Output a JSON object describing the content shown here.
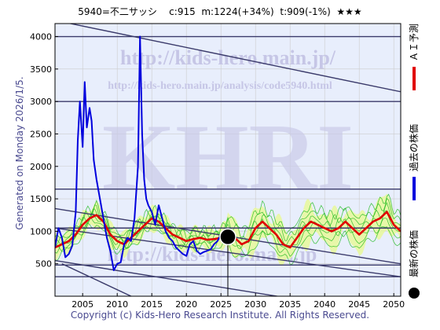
{
  "header": {
    "code": "5940=不二サッシ",
    "c": "c:915",
    "m": "m:1224(+34%)",
    "t": "t:909(-1%)",
    "stars": "★★★"
  },
  "side_label": "Generated on Monday 2026/1/5.",
  "footer": "Copyright (c) Kids-Hero Research Institute. All Rights Reserved.",
  "watermark": {
    "url1": "http://kids-hero.main.jp/",
    "url2": "http://kids-hero.main.jp/analysis/code5940.html",
    "logo": "KHRI",
    "url3": "http://kids-hero.main.jp"
  },
  "legend": [
    {
      "label": "ＡＩ予測",
      "color": "#e00000",
      "kind": "line"
    },
    {
      "label": "過去の株価",
      "color": "#0000dd",
      "kind": "line"
    },
    {
      "label": "最新の株価",
      "color": "#000000",
      "kind": "dot"
    }
  ],
  "colors": {
    "actual": "#0000dd",
    "forecast": "#e00000",
    "band": "#22bb22",
    "band_fill": "#e8f7a0",
    "trend": "#3a3a6a",
    "grid": "#cccccc",
    "bg": "#e8eefc"
  },
  "chart_data": {
    "type": "line",
    "xlim": [
      2001,
      2051
    ],
    "ylim": [
      0,
      4200
    ],
    "xticks": [
      2005,
      2010,
      2015,
      2020,
      2025,
      2030,
      2035,
      2040,
      2045,
      2050
    ],
    "yticks": [
      500,
      1000,
      1500,
      2000,
      2500,
      3000,
      3500,
      4000
    ],
    "grid": true,
    "legend_position": "right",
    "series": [
      {
        "name": "過去の株価",
        "x": [
          2001,
          2001.5,
          2002,
          2002.5,
          2003,
          2003.5,
          2004,
          2004.3,
          2004.6,
          2005,
          2005.3,
          2005.6,
          2006,
          2006.3,
          2006.6,
          2007,
          2007.5,
          2008,
          2008.5,
          2009,
          2009.5,
          2010,
          2010.5,
          2011,
          2011.5,
          2012,
          2012.5,
          2013,
          2013.3,
          2013.6,
          2013.9,
          2014.2,
          2014.5,
          2015,
          2015.5,
          2016,
          2016.5,
          2017,
          2017.5,
          2018,
          2018.5,
          2019,
          2019.5,
          2020,
          2020.5,
          2021,
          2021.5,
          2022,
          2022.5,
          2023,
          2023.5,
          2024,
          2024.5,
          2025,
          2025.3
        ],
        "y": [
          750,
          1050,
          900,
          600,
          650,
          780,
          1300,
          2400,
          3000,
          2300,
          3300,
          2600,
          2900,
          2700,
          2100,
          1800,
          1500,
          1200,
          900,
          700,
          400,
          500,
          520,
          800,
          900,
          850,
          1200,
          2000,
          4000,
          2500,
          1800,
          1500,
          1400,
          1300,
          1100,
          1400,
          1200,
          1000,
          900,
          850,
          750,
          700,
          650,
          620,
          800,
          850,
          700,
          650,
          680,
          700,
          720,
          800,
          850,
          950,
          950
        ]
      },
      {
        "name": "ＡＩ予測",
        "x": [
          2001,
          2002,
          2003,
          2004,
          2005,
          2006,
          2007,
          2008,
          2009,
          2010,
          2011,
          2012,
          2013,
          2014,
          2015,
          2016,
          2017,
          2018,
          2019,
          2020,
          2021,
          2022,
          2023,
          2024,
          2025,
          2026,
          2027,
          2028,
          2029,
          2030,
          2031,
          2032,
          2033,
          2034,
          2035,
          2036,
          2037,
          2038,
          2039,
          2040,
          2041,
          2042,
          2043,
          2044,
          2045,
          2046,
          2047,
          2048,
          2049,
          2050,
          2051
        ],
        "y": [
          750,
          800,
          850,
          950,
          1100,
          1200,
          1250,
          1150,
          950,
          850,
          800,
          900,
          1000,
          1100,
          1200,
          1150,
          1050,
          950,
          900,
          850,
          880,
          900,
          870,
          880,
          900,
          1000,
          900,
          800,
          850,
          1050,
          1150,
          1050,
          950,
          800,
          750,
          900,
          1050,
          1150,
          1100,
          1050,
          1000,
          1050,
          1150,
          1050,
          950,
          1050,
          1150,
          1200,
          1300,
          1100,
          1000
        ]
      }
    ],
    "trendlines": [
      {
        "x": [
          2001,
          2051
        ],
        "y": [
          4250,
          3150
        ]
      },
      {
        "x": [
          2001,
          2051
        ],
        "y": [
          1350,
          500
        ]
      },
      {
        "x": [
          2001,
          2051
        ],
        "y": [
          1050,
          300
        ]
      },
      {
        "x": [
          2001,
          2036
        ],
        "y": [
          550,
          -50
        ]
      },
      {
        "x": [
          2002,
          2012
        ],
        "y": [
          500,
          0
        ]
      }
    ],
    "hlines": [
      4000,
      3000,
      1650,
      1050,
      480,
      300
    ],
    "band_anchor_x": 2026,
    "latest": {
      "x": 2026,
      "y": 915
    }
  }
}
